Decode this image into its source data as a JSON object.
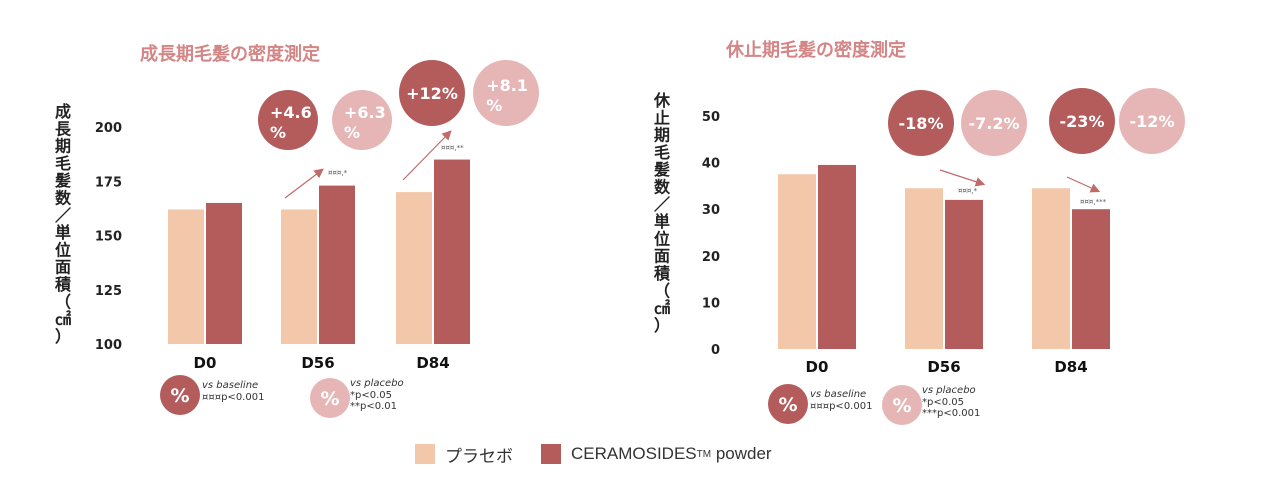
{
  "colors": {
    "placebo": "#f2c7aa",
    "ceramosides": "#b45c5c",
    "title": "#d48585",
    "circle_dark": "#b45c5c",
    "circle_light": "#e6b6b6",
    "arrow": "#c06a6a"
  },
  "legend": {
    "placebo_label": "プラセボ",
    "ceramosides_label": "CERAMOSIDES",
    "ceramosides_tm": "TM",
    "ceramosides_suffix": " powder"
  },
  "chart_data": [
    {
      "type": "bar",
      "title": "成長期毛髪の密度測定",
      "ylabel": "成長期毛髪数／単位 面積 （㎠）",
      "categories": [
        "D0",
        "D56",
        "D84"
      ],
      "ylim": [
        100,
        200
      ],
      "yticks": [
        100,
        125,
        150,
        175,
        200
      ],
      "series": [
        {
          "name": "プラセボ",
          "values": [
            162,
            162,
            170
          ]
        },
        {
          "name": "CERAMOSIDES™ powder",
          "values": [
            165,
            173,
            185
          ]
        }
      ],
      "annotations": [
        {
          "category": "D56",
          "vs_baseline": "+4.6 %",
          "vs_placebo": "+6.3 %",
          "sig": "¤¤¤,*"
        },
        {
          "category": "D84",
          "vs_baseline": "+12%",
          "vs_placebo": "+8.1 %",
          "sig": "¤¤¤,**"
        }
      ],
      "notes": {
        "baseline_symbol": "%",
        "baseline_title": "vs baseline",
        "baseline_lines": [
          "¤¤¤p<0.001"
        ],
        "placebo_symbol": "%",
        "placebo_title": "vs placebo",
        "placebo_lines": [
          "*p<0.05",
          "**p<0.01"
        ]
      }
    },
    {
      "type": "bar",
      "title": "休止期毛髪の密度測定",
      "ylabel": "休止期毛髪数／単位 面積 （㎠）",
      "categories": [
        "D0",
        "D56",
        "D84"
      ],
      "ylim": [
        0,
        50
      ],
      "yticks": [
        0,
        10,
        20,
        30,
        40,
        50
      ],
      "series": [
        {
          "name": "プラセボ",
          "values": [
            37.5,
            34.5,
            34.5
          ]
        },
        {
          "name": "CERAMOSIDES™ powder",
          "values": [
            39.5,
            32,
            30
          ]
        }
      ],
      "annotations": [
        {
          "category": "D56",
          "vs_baseline": "-18%",
          "vs_placebo": "-7.2%",
          "sig": "¤¤¤,*"
        },
        {
          "category": "D84",
          "vs_baseline": "-23%",
          "vs_placebo": "-12%",
          "sig": "¤¤¤,***"
        }
      ],
      "notes": {
        "baseline_symbol": "%",
        "baseline_title": "vs baseline",
        "baseline_lines": [
          "¤¤¤p<0.001"
        ],
        "placebo_symbol": "%",
        "placebo_title": "vs placebo",
        "placebo_lines": [
          "*p<0.05",
          "***p<0.001"
        ]
      }
    }
  ]
}
